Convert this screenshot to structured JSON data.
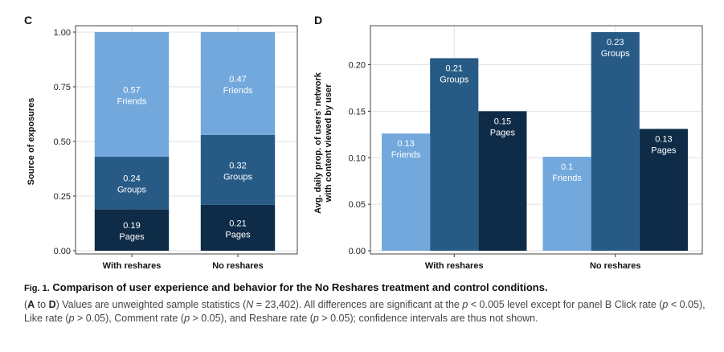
{
  "colors": {
    "friends": "#73a8dc",
    "groups": "#275b86",
    "pages": "#0e2c48",
    "grid": "#e2e2e2",
    "panel_border": "#444444"
  },
  "chart_data": [
    {
      "type": "bar",
      "stacked": true,
      "panel": "C",
      "ylabel": "Source of exposures",
      "xlabel": "",
      "ylim": [
        0,
        1
      ],
      "yticks": [
        "0.00",
        "0.25",
        "0.50",
        "0.75",
        "1.00"
      ],
      "categories": [
        "With reshares",
        "No reshares"
      ],
      "series": [
        {
          "name": "Pages",
          "values": [
            0.19,
            0.21
          ],
          "labels": [
            "0.19",
            "0.21"
          ]
        },
        {
          "name": "Groups",
          "values": [
            0.24,
            0.32
          ],
          "labels": [
            "0.24",
            "0.32"
          ]
        },
        {
          "name": "Friends",
          "values": [
            0.57,
            0.47
          ],
          "labels": [
            "0.57",
            "0.47"
          ]
        }
      ],
      "grid": true
    },
    {
      "type": "bar",
      "stacked": false,
      "panel": "D",
      "ylabel": "Avg. daily prop. of users' network with content viewed by user",
      "ylabel_lines": [
        "Avg. daily prop. of users' network",
        "with content viewed by user"
      ],
      "xlabel": "",
      "ylim": [
        0,
        0.235
      ],
      "yticks": [
        "0.00",
        "0.05",
        "0.10",
        "0.15",
        "0.20"
      ],
      "categories": [
        "With reshares",
        "No reshares"
      ],
      "series": [
        {
          "name": "Friends",
          "values": [
            0.126,
            0.101
          ],
          "labels": [
            "0.13",
            "0.1"
          ]
        },
        {
          "name": "Groups",
          "values": [
            0.207,
            0.235
          ],
          "labels": [
            "0.21",
            "0.23"
          ]
        },
        {
          "name": "Pages",
          "values": [
            0.15,
            0.131
          ],
          "labels": [
            "0.15",
            "0.13"
          ]
        }
      ],
      "grid": true
    }
  ],
  "caption": {
    "fig_label": "Fig. 1.",
    "title": "Comparison of user experience and behavior for the No Reshares treatment and control conditions.",
    "paren_open": "(",
    "letter_a": "A",
    "to_text": " to ",
    "letter_d": "D",
    "body_1": ") Values are unweighted sample statistics (",
    "n_symbol": "N",
    "body_2": " = 23,402). All differences are significant at the ",
    "p1": "p",
    "body_3": " < 0.005 level except for panel B Click rate (",
    "p2": "p",
    "body_4": " < 0.05), Like rate (",
    "p3": "p",
    "body_5": " > 0.05), Comment rate (",
    "p4": "p",
    "body_6": " > 0.05), and Reshare rate (",
    "p5": "p",
    "body_7": " > 0.05); confidence intervals are thus not shown."
  }
}
